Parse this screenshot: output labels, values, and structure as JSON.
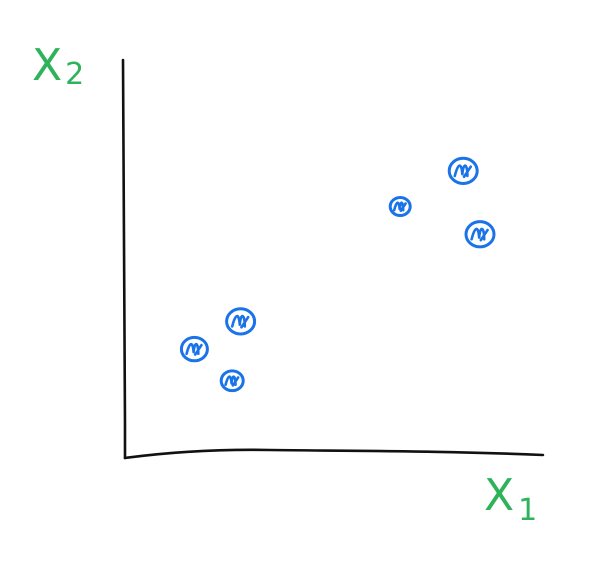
{
  "colors": {
    "background": "#ffffff",
    "axis": "#111111",
    "labels": "#2fb35a",
    "points": "#1a73e8"
  },
  "chart_data": {
    "type": "scatter",
    "title": "",
    "xlabel": "X",
    "xlabel_subscript": "1",
    "ylabel": "X",
    "ylabel_subscript": "2",
    "tick_labels": false,
    "grid": false,
    "legend": "none",
    "xlim": [
      0,
      10
    ],
    "ylim": [
      0,
      10
    ],
    "series": [
      {
        "points": [
          {
            "x": 1.7,
            "y": 2.7
          },
          {
            "x": 2.8,
            "y": 3.4
          },
          {
            "x": 2.6,
            "y": 1.9
          },
          {
            "x": 6.6,
            "y": 6.3
          },
          {
            "x": 8.1,
            "y": 7.2
          },
          {
            "x": 8.5,
            "y": 5.6
          }
        ]
      }
    ]
  }
}
